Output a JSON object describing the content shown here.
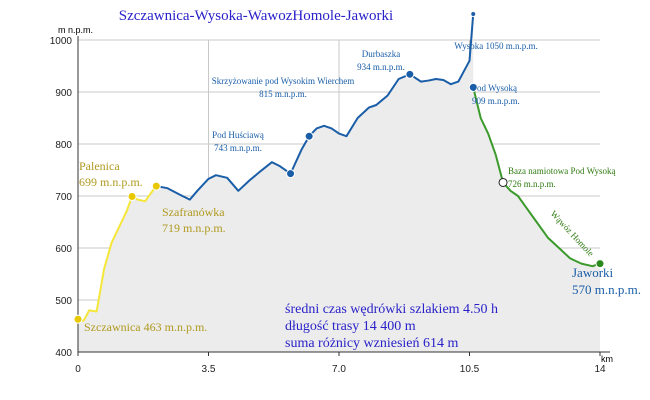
{
  "chart_data": {
    "type": "area",
    "title": "Szczawnica-Wysoka-WawozHomole-Jaworki",
    "ylabel": "m n.p.m.",
    "xunit": "km",
    "xlim": [
      0,
      14
    ],
    "ylim": [
      400,
      1000
    ],
    "xticks": [
      0,
      3.5,
      7.0,
      10.5,
      14
    ],
    "xtick_labels": [
      "0",
      "3.5",
      "7.0",
      "10.5",
      "14"
    ],
    "yticks": [
      400,
      500,
      600,
      700,
      800,
      900,
      1000
    ],
    "grid": true,
    "series": [
      {
        "segment": "yellow",
        "x": [
          0,
          0.15,
          0.3,
          0.5,
          0.7,
          0.9,
          1.1,
          1.3,
          1.45,
          1.6,
          1.8,
          1.95,
          2.1
        ],
        "y": [
          463,
          460,
          480,
          478,
          560,
          610,
          640,
          670,
          699,
          693,
          690,
          705,
          719
        ]
      },
      {
        "segment": "blue",
        "x": [
          2.1,
          2.4,
          2.8,
          3.0,
          3.2,
          3.5,
          3.7,
          4.0,
          4.3,
          4.6,
          4.9,
          5.2,
          5.4,
          5.7,
          6.0,
          6.2,
          6.4,
          6.6,
          6.8,
          7.0,
          7.2,
          7.5,
          7.8,
          8.0,
          8.3,
          8.6,
          8.9,
          9.2,
          9.4,
          9.6,
          9.8,
          10.0,
          10.2,
          10.35,
          10.5,
          10.6
        ],
        "y": [
          719,
          715,
          700,
          693,
          710,
          733,
          740,
          735,
          710,
          730,
          748,
          765,
          758,
          743,
          790,
          815,
          830,
          835,
          830,
          820,
          815,
          850,
          870,
          875,
          893,
          925,
          934,
          920,
          922,
          925,
          923,
          915,
          920,
          940,
          960,
          1050
        ]
      },
      {
        "segment": "green",
        "x": [
          10.6,
          10.8,
          11.0,
          11.2,
          11.4,
          11.6,
          11.8,
          12.0,
          12.3,
          12.6,
          12.9,
          13.2,
          13.5,
          13.8,
          14.0
        ],
        "y": [
          909,
          850,
          820,
          780,
          726,
          710,
          700,
          680,
          650,
          620,
          600,
          580,
          570,
          565,
          570
        ]
      }
    ],
    "waypoints": [
      {
        "name": "Szczawnica",
        "elevation_label": "463 m.n.p.m.",
        "x": 0,
        "y": 463,
        "color": "#e8c800"
      },
      {
        "name": "Palenica",
        "elevation_label": "699 m.n.p.m.",
        "x": 1.45,
        "y": 699,
        "color": "#e8c800"
      },
      {
        "name": "Szafranówka",
        "elevation_label": "719 m.n.p.m.",
        "x": 2.1,
        "y": 719,
        "color": "#e8c800"
      },
      {
        "name": "Pod Huściawą",
        "elevation_label": "743 m.n.p.m.",
        "x": 5.7,
        "y": 743,
        "color": "#1a5ea8"
      },
      {
        "name": "Skrzyżowanie pod Wysokim Wierchem",
        "elevation_label": "815 m.n.p.m.",
        "x": 6.2,
        "y": 815,
        "color": "#1a5ea8"
      },
      {
        "name": "Durbaszka",
        "elevation_label": "934 m.n.p.m.",
        "x": 8.9,
        "y": 934,
        "color": "#1a5ea8"
      },
      {
        "name": "Wysoka",
        "elevation_label": "1050 m.n.p.m.",
        "x": 10.6,
        "y": 1050,
        "color": "#1a5ea8"
      },
      {
        "name": "Pod Wysoką",
        "elevation_label": "909 m.n.p.m.",
        "x": 10.6,
        "y": 909,
        "color": "#1a5ea8"
      },
      {
        "name": "Baza namiotowa Pod Wysoką",
        "elevation_label": "726 m.n.p.m.",
        "x": 11.4,
        "y": 726,
        "color": "#ffffff"
      },
      {
        "name": "Jaworki",
        "elevation_label": "570 m.n.p.m.",
        "x": 14,
        "y": 570,
        "color": "#2a8a1e"
      }
    ],
    "route_label": "Wąwóz Homole",
    "info_lines": [
      "średni czas wędrówki szlakiem 4.50 h",
      "długość trasy 14 400 m",
      "suma różnicy wzniesień 614 m"
    ],
    "colors": {
      "title": "#2a22c8",
      "info": "#2a22c8",
      "yellow": "#f5e63a",
      "blue": "#1a5ea8",
      "green": "#3a9a2a",
      "yellow_label": "#b09a20",
      "green_label": "#2e7a10",
      "fill": "#ececec",
      "grid": "#c8c8c8"
    }
  }
}
